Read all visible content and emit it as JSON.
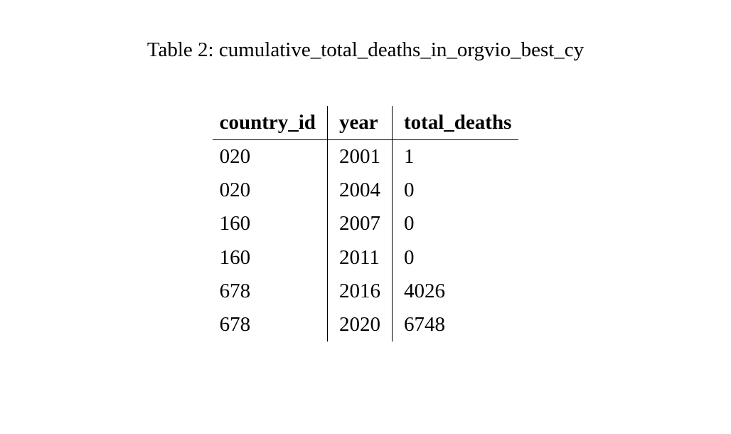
{
  "caption": {
    "label": "Table 2:",
    "title": "cumulative_total_deaths_in_orgvio_best_cy"
  },
  "table": {
    "type": "table",
    "background_color": "#ffffff",
    "text_color": "#000000",
    "border_color": "#000000",
    "header_fontweight": "bold",
    "fontsize_pt": 22,
    "columns": [
      {
        "key": "country_id",
        "label": "country_id",
        "align": "left"
      },
      {
        "key": "year",
        "label": "year",
        "align": "left"
      },
      {
        "key": "total_deaths",
        "label": "total_deaths",
        "align": "left"
      }
    ],
    "rows": [
      {
        "country_id": "020",
        "year": "2001",
        "total_deaths": "1"
      },
      {
        "country_id": "020",
        "year": "2004",
        "total_deaths": "0"
      },
      {
        "country_id": "160",
        "year": "2007",
        "total_deaths": "0"
      },
      {
        "country_id": "160",
        "year": "2011",
        "total_deaths": "0"
      },
      {
        "country_id": "678",
        "year": "2016",
        "total_deaths": "4026"
      },
      {
        "country_id": "678",
        "year": "2020",
        "total_deaths": "6748"
      }
    ]
  }
}
